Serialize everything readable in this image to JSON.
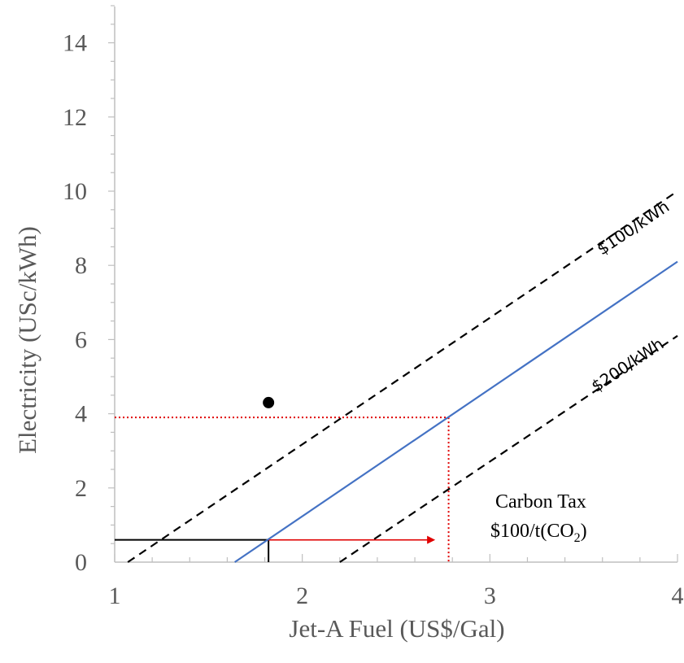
{
  "chart_data": {
    "type": "line",
    "title": "",
    "xlabel": "Jet-A Fuel (US$/Gal)",
    "ylabel": "Electricity (USc/kWh)",
    "xlim": [
      1,
      4
    ],
    "ylim": [
      0,
      15
    ],
    "x_ticks": [
      1,
      2,
      3,
      4
    ],
    "y_ticks": [
      0,
      2,
      4,
      6,
      8,
      10,
      12,
      14
    ],
    "grid": false,
    "series": [
      {
        "name": "$100/kWh",
        "style": "dashed",
        "color": "#000000",
        "x": [
          1.07,
          4.0
        ],
        "y": [
          0.0,
          10.0
        ]
      },
      {
        "name": "",
        "style": "solid",
        "color": "#4472C4",
        "x": [
          1.64,
          4.0
        ],
        "y": [
          0.0,
          8.1
        ]
      },
      {
        "name": "$200/kWh",
        "style": "dashed",
        "color": "#000000",
        "x": [
          2.2,
          4.0
        ],
        "y": [
          0.0,
          6.1
        ]
      }
    ],
    "points": [
      {
        "x": 1.82,
        "y": 4.3,
        "color": "#000000"
      }
    ],
    "guides": {
      "black": {
        "x": 1.82,
        "y": 0.6,
        "color": "#000000"
      },
      "red": {
        "x": 2.78,
        "y": 3.9,
        "color": "#E00000"
      },
      "arrow": {
        "x_from": 1.82,
        "x_to": 2.7,
        "y": 0.6,
        "color": "#E00000"
      }
    },
    "annotations": {
      "carbon_tax_line1": "Carbon Tax",
      "carbon_tax_line2_prefix": "$100/t(CO",
      "carbon_tax_line2_sub": "2",
      "carbon_tax_line2_suffix": ")"
    }
  }
}
